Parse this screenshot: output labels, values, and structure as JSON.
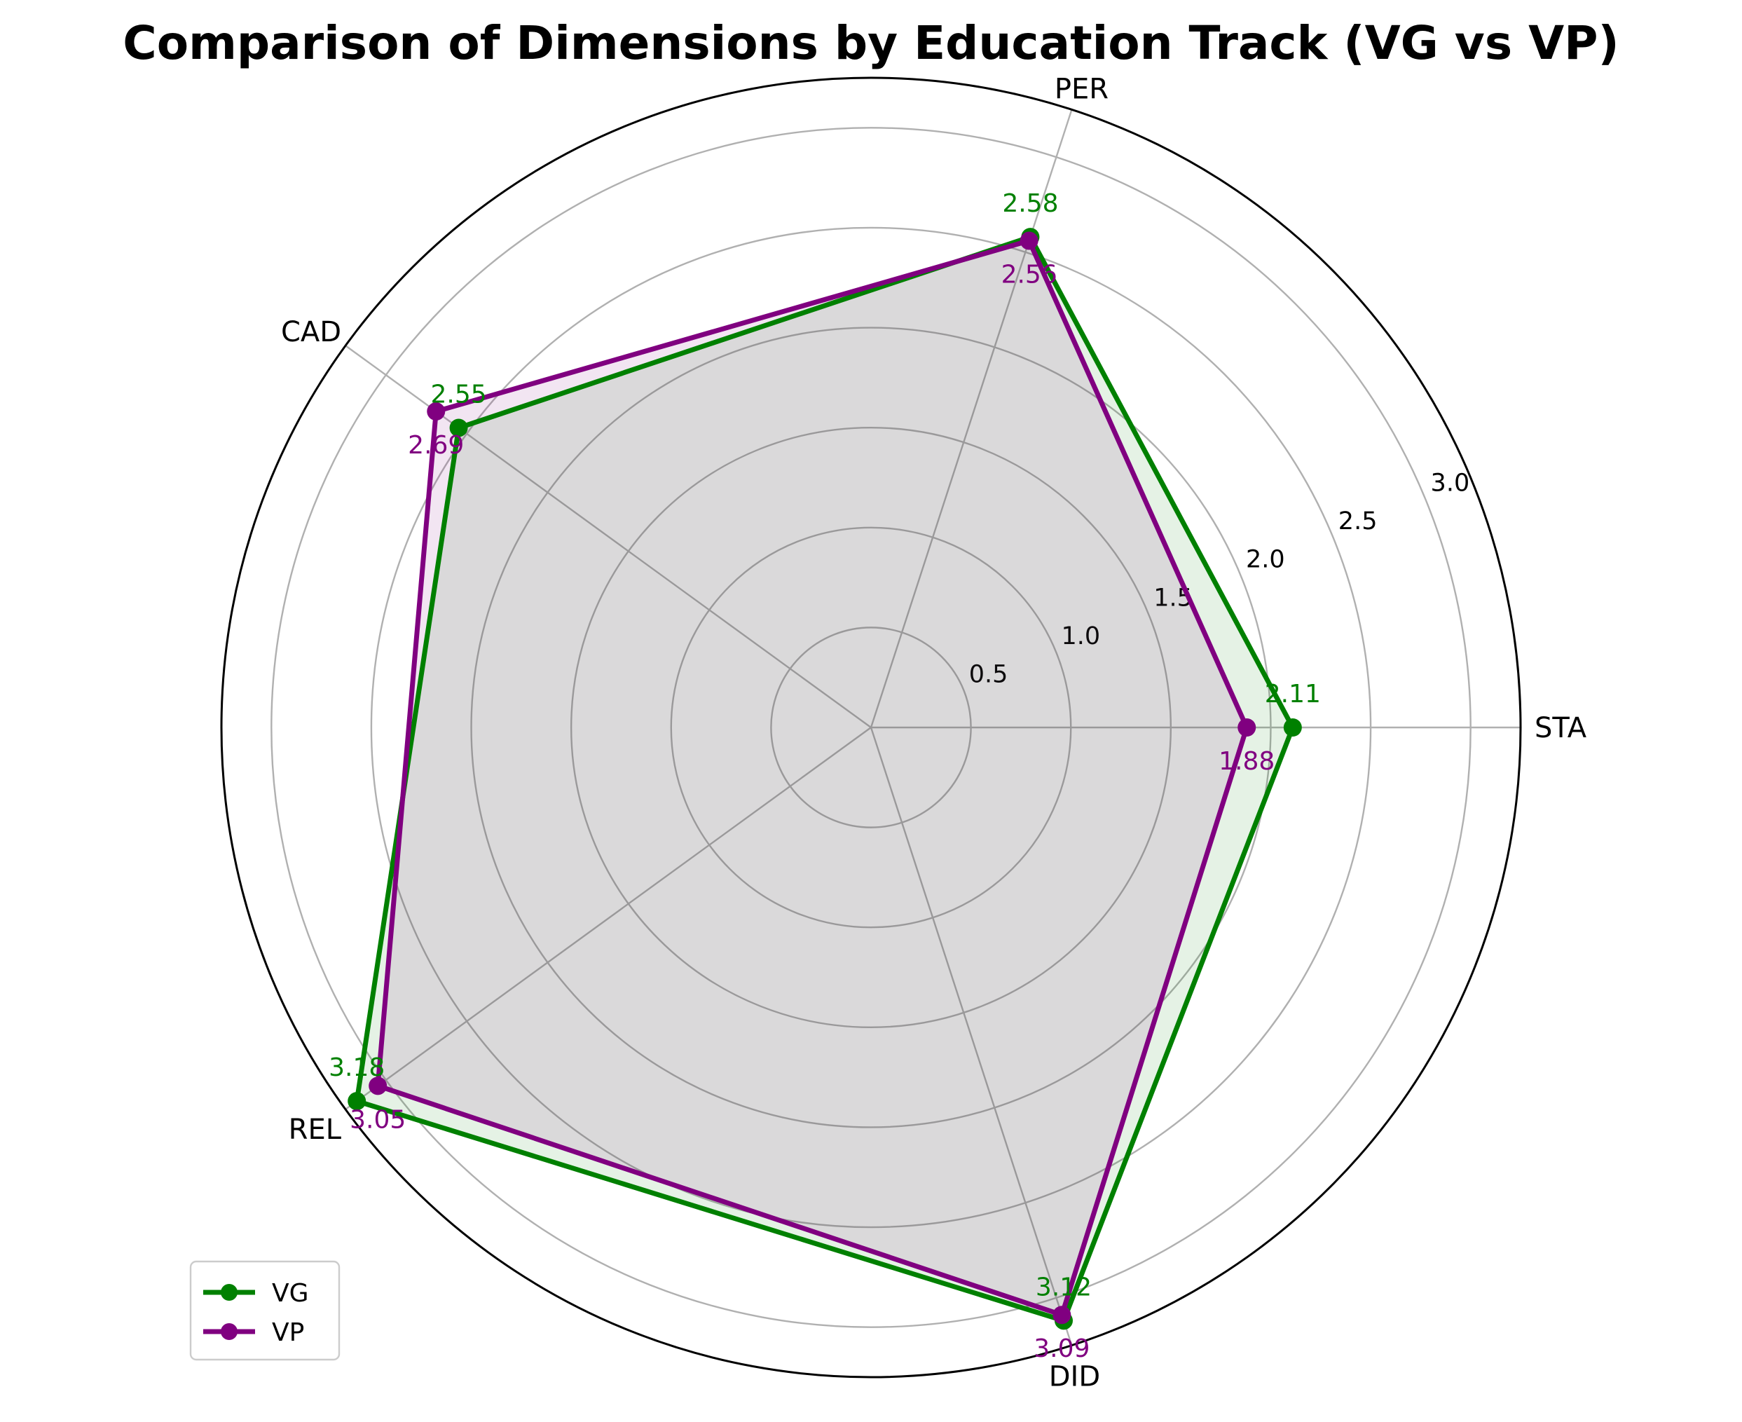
{
  "chart_data": {
    "type": "radar",
    "title": "Comparison of Dimensions by Education Track (VG vs VP)",
    "categories": [
      "STA",
      "PER",
      "CAD",
      "REL",
      "DID"
    ],
    "rlim": [
      0,
      3.25
    ],
    "rticks": [
      0.5,
      1.0,
      1.5,
      2.0,
      2.5,
      3.0
    ],
    "rtick_labels": [
      "0.5",
      "1.0",
      "1.5",
      "2.0",
      "2.5",
      "3.0"
    ],
    "grid": true,
    "legend_position": "lower-left",
    "series": [
      {
        "name": "VG",
        "color": "#008000",
        "values": [
          2.11,
          2.58,
          2.55,
          3.18,
          3.12
        ],
        "value_labels": [
          "2.11",
          "2.58",
          "2.55",
          "3.18",
          "3.12"
        ]
      },
      {
        "name": "VP",
        "color": "#800080",
        "values": [
          1.88,
          2.56,
          2.69,
          3.05,
          3.09
        ],
        "value_labels": [
          "1.88",
          "2.56",
          "2.69",
          "3.05",
          "3.09"
        ]
      }
    ]
  }
}
